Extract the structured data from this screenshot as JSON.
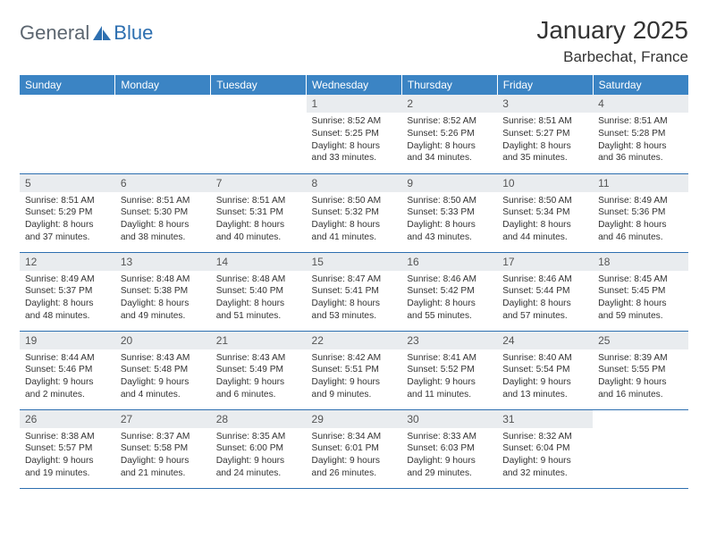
{
  "logo": {
    "part1": "General",
    "part2": "Blue"
  },
  "title": "January 2025",
  "location": "Barbechat, France",
  "colors": {
    "header_bg": "#3b84c4",
    "header_text": "#ffffff",
    "daynum_bg": "#e9ecef",
    "border": "#2d6fb0",
    "logo_gray": "#5c6670",
    "logo_blue": "#2d6fb0"
  },
  "weekdays": [
    "Sunday",
    "Monday",
    "Tuesday",
    "Wednesday",
    "Thursday",
    "Friday",
    "Saturday"
  ],
  "weeks": [
    [
      null,
      null,
      null,
      {
        "n": "1",
        "sr": "Sunrise: 8:52 AM",
        "ss": "Sunset: 5:25 PM",
        "d1": "Daylight: 8 hours",
        "d2": "and 33 minutes."
      },
      {
        "n": "2",
        "sr": "Sunrise: 8:52 AM",
        "ss": "Sunset: 5:26 PM",
        "d1": "Daylight: 8 hours",
        "d2": "and 34 minutes."
      },
      {
        "n": "3",
        "sr": "Sunrise: 8:51 AM",
        "ss": "Sunset: 5:27 PM",
        "d1": "Daylight: 8 hours",
        "d2": "and 35 minutes."
      },
      {
        "n": "4",
        "sr": "Sunrise: 8:51 AM",
        "ss": "Sunset: 5:28 PM",
        "d1": "Daylight: 8 hours",
        "d2": "and 36 minutes."
      }
    ],
    [
      {
        "n": "5",
        "sr": "Sunrise: 8:51 AM",
        "ss": "Sunset: 5:29 PM",
        "d1": "Daylight: 8 hours",
        "d2": "and 37 minutes."
      },
      {
        "n": "6",
        "sr": "Sunrise: 8:51 AM",
        "ss": "Sunset: 5:30 PM",
        "d1": "Daylight: 8 hours",
        "d2": "and 38 minutes."
      },
      {
        "n": "7",
        "sr": "Sunrise: 8:51 AM",
        "ss": "Sunset: 5:31 PM",
        "d1": "Daylight: 8 hours",
        "d2": "and 40 minutes."
      },
      {
        "n": "8",
        "sr": "Sunrise: 8:50 AM",
        "ss": "Sunset: 5:32 PM",
        "d1": "Daylight: 8 hours",
        "d2": "and 41 minutes."
      },
      {
        "n": "9",
        "sr": "Sunrise: 8:50 AM",
        "ss": "Sunset: 5:33 PM",
        "d1": "Daylight: 8 hours",
        "d2": "and 43 minutes."
      },
      {
        "n": "10",
        "sr": "Sunrise: 8:50 AM",
        "ss": "Sunset: 5:34 PM",
        "d1": "Daylight: 8 hours",
        "d2": "and 44 minutes."
      },
      {
        "n": "11",
        "sr": "Sunrise: 8:49 AM",
        "ss": "Sunset: 5:36 PM",
        "d1": "Daylight: 8 hours",
        "d2": "and 46 minutes."
      }
    ],
    [
      {
        "n": "12",
        "sr": "Sunrise: 8:49 AM",
        "ss": "Sunset: 5:37 PM",
        "d1": "Daylight: 8 hours",
        "d2": "and 48 minutes."
      },
      {
        "n": "13",
        "sr": "Sunrise: 8:48 AM",
        "ss": "Sunset: 5:38 PM",
        "d1": "Daylight: 8 hours",
        "d2": "and 49 minutes."
      },
      {
        "n": "14",
        "sr": "Sunrise: 8:48 AM",
        "ss": "Sunset: 5:40 PM",
        "d1": "Daylight: 8 hours",
        "d2": "and 51 minutes."
      },
      {
        "n": "15",
        "sr": "Sunrise: 8:47 AM",
        "ss": "Sunset: 5:41 PM",
        "d1": "Daylight: 8 hours",
        "d2": "and 53 minutes."
      },
      {
        "n": "16",
        "sr": "Sunrise: 8:46 AM",
        "ss": "Sunset: 5:42 PM",
        "d1": "Daylight: 8 hours",
        "d2": "and 55 minutes."
      },
      {
        "n": "17",
        "sr": "Sunrise: 8:46 AM",
        "ss": "Sunset: 5:44 PM",
        "d1": "Daylight: 8 hours",
        "d2": "and 57 minutes."
      },
      {
        "n": "18",
        "sr": "Sunrise: 8:45 AM",
        "ss": "Sunset: 5:45 PM",
        "d1": "Daylight: 8 hours",
        "d2": "and 59 minutes."
      }
    ],
    [
      {
        "n": "19",
        "sr": "Sunrise: 8:44 AM",
        "ss": "Sunset: 5:46 PM",
        "d1": "Daylight: 9 hours",
        "d2": "and 2 minutes."
      },
      {
        "n": "20",
        "sr": "Sunrise: 8:43 AM",
        "ss": "Sunset: 5:48 PM",
        "d1": "Daylight: 9 hours",
        "d2": "and 4 minutes."
      },
      {
        "n": "21",
        "sr": "Sunrise: 8:43 AM",
        "ss": "Sunset: 5:49 PM",
        "d1": "Daylight: 9 hours",
        "d2": "and 6 minutes."
      },
      {
        "n": "22",
        "sr": "Sunrise: 8:42 AM",
        "ss": "Sunset: 5:51 PM",
        "d1": "Daylight: 9 hours",
        "d2": "and 9 minutes."
      },
      {
        "n": "23",
        "sr": "Sunrise: 8:41 AM",
        "ss": "Sunset: 5:52 PM",
        "d1": "Daylight: 9 hours",
        "d2": "and 11 minutes."
      },
      {
        "n": "24",
        "sr": "Sunrise: 8:40 AM",
        "ss": "Sunset: 5:54 PM",
        "d1": "Daylight: 9 hours",
        "d2": "and 13 minutes."
      },
      {
        "n": "25",
        "sr": "Sunrise: 8:39 AM",
        "ss": "Sunset: 5:55 PM",
        "d1": "Daylight: 9 hours",
        "d2": "and 16 minutes."
      }
    ],
    [
      {
        "n": "26",
        "sr": "Sunrise: 8:38 AM",
        "ss": "Sunset: 5:57 PM",
        "d1": "Daylight: 9 hours",
        "d2": "and 19 minutes."
      },
      {
        "n": "27",
        "sr": "Sunrise: 8:37 AM",
        "ss": "Sunset: 5:58 PM",
        "d1": "Daylight: 9 hours",
        "d2": "and 21 minutes."
      },
      {
        "n": "28",
        "sr": "Sunrise: 8:35 AM",
        "ss": "Sunset: 6:00 PM",
        "d1": "Daylight: 9 hours",
        "d2": "and 24 minutes."
      },
      {
        "n": "29",
        "sr": "Sunrise: 8:34 AM",
        "ss": "Sunset: 6:01 PM",
        "d1": "Daylight: 9 hours",
        "d2": "and 26 minutes."
      },
      {
        "n": "30",
        "sr": "Sunrise: 8:33 AM",
        "ss": "Sunset: 6:03 PM",
        "d1": "Daylight: 9 hours",
        "d2": "and 29 minutes."
      },
      {
        "n": "31",
        "sr": "Sunrise: 8:32 AM",
        "ss": "Sunset: 6:04 PM",
        "d1": "Daylight: 9 hours",
        "d2": "and 32 minutes."
      },
      null
    ]
  ]
}
